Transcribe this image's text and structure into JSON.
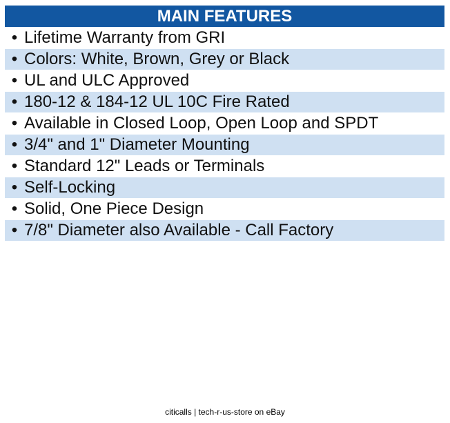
{
  "header": {
    "title": "MAIN FEATURES"
  },
  "features": [
    "Lifetime Warranty from GRI",
    "Colors: White, Brown, Grey or Black",
    "UL and ULC Approved",
    "180-12 & 184-12 UL 10C Fire Rated",
    "Available in Closed Loop, Open Loop and SPDT",
    "3/4\" and 1\" Diameter Mounting",
    "Standard 12\" Leads or Terminals",
    "Self-Locking",
    "Solid, One Piece Design",
    "7/8\" Diameter also Available - Call Factory"
  ],
  "bullet": "•",
  "footer": "citicalls | tech-r-us-store on eBay"
}
